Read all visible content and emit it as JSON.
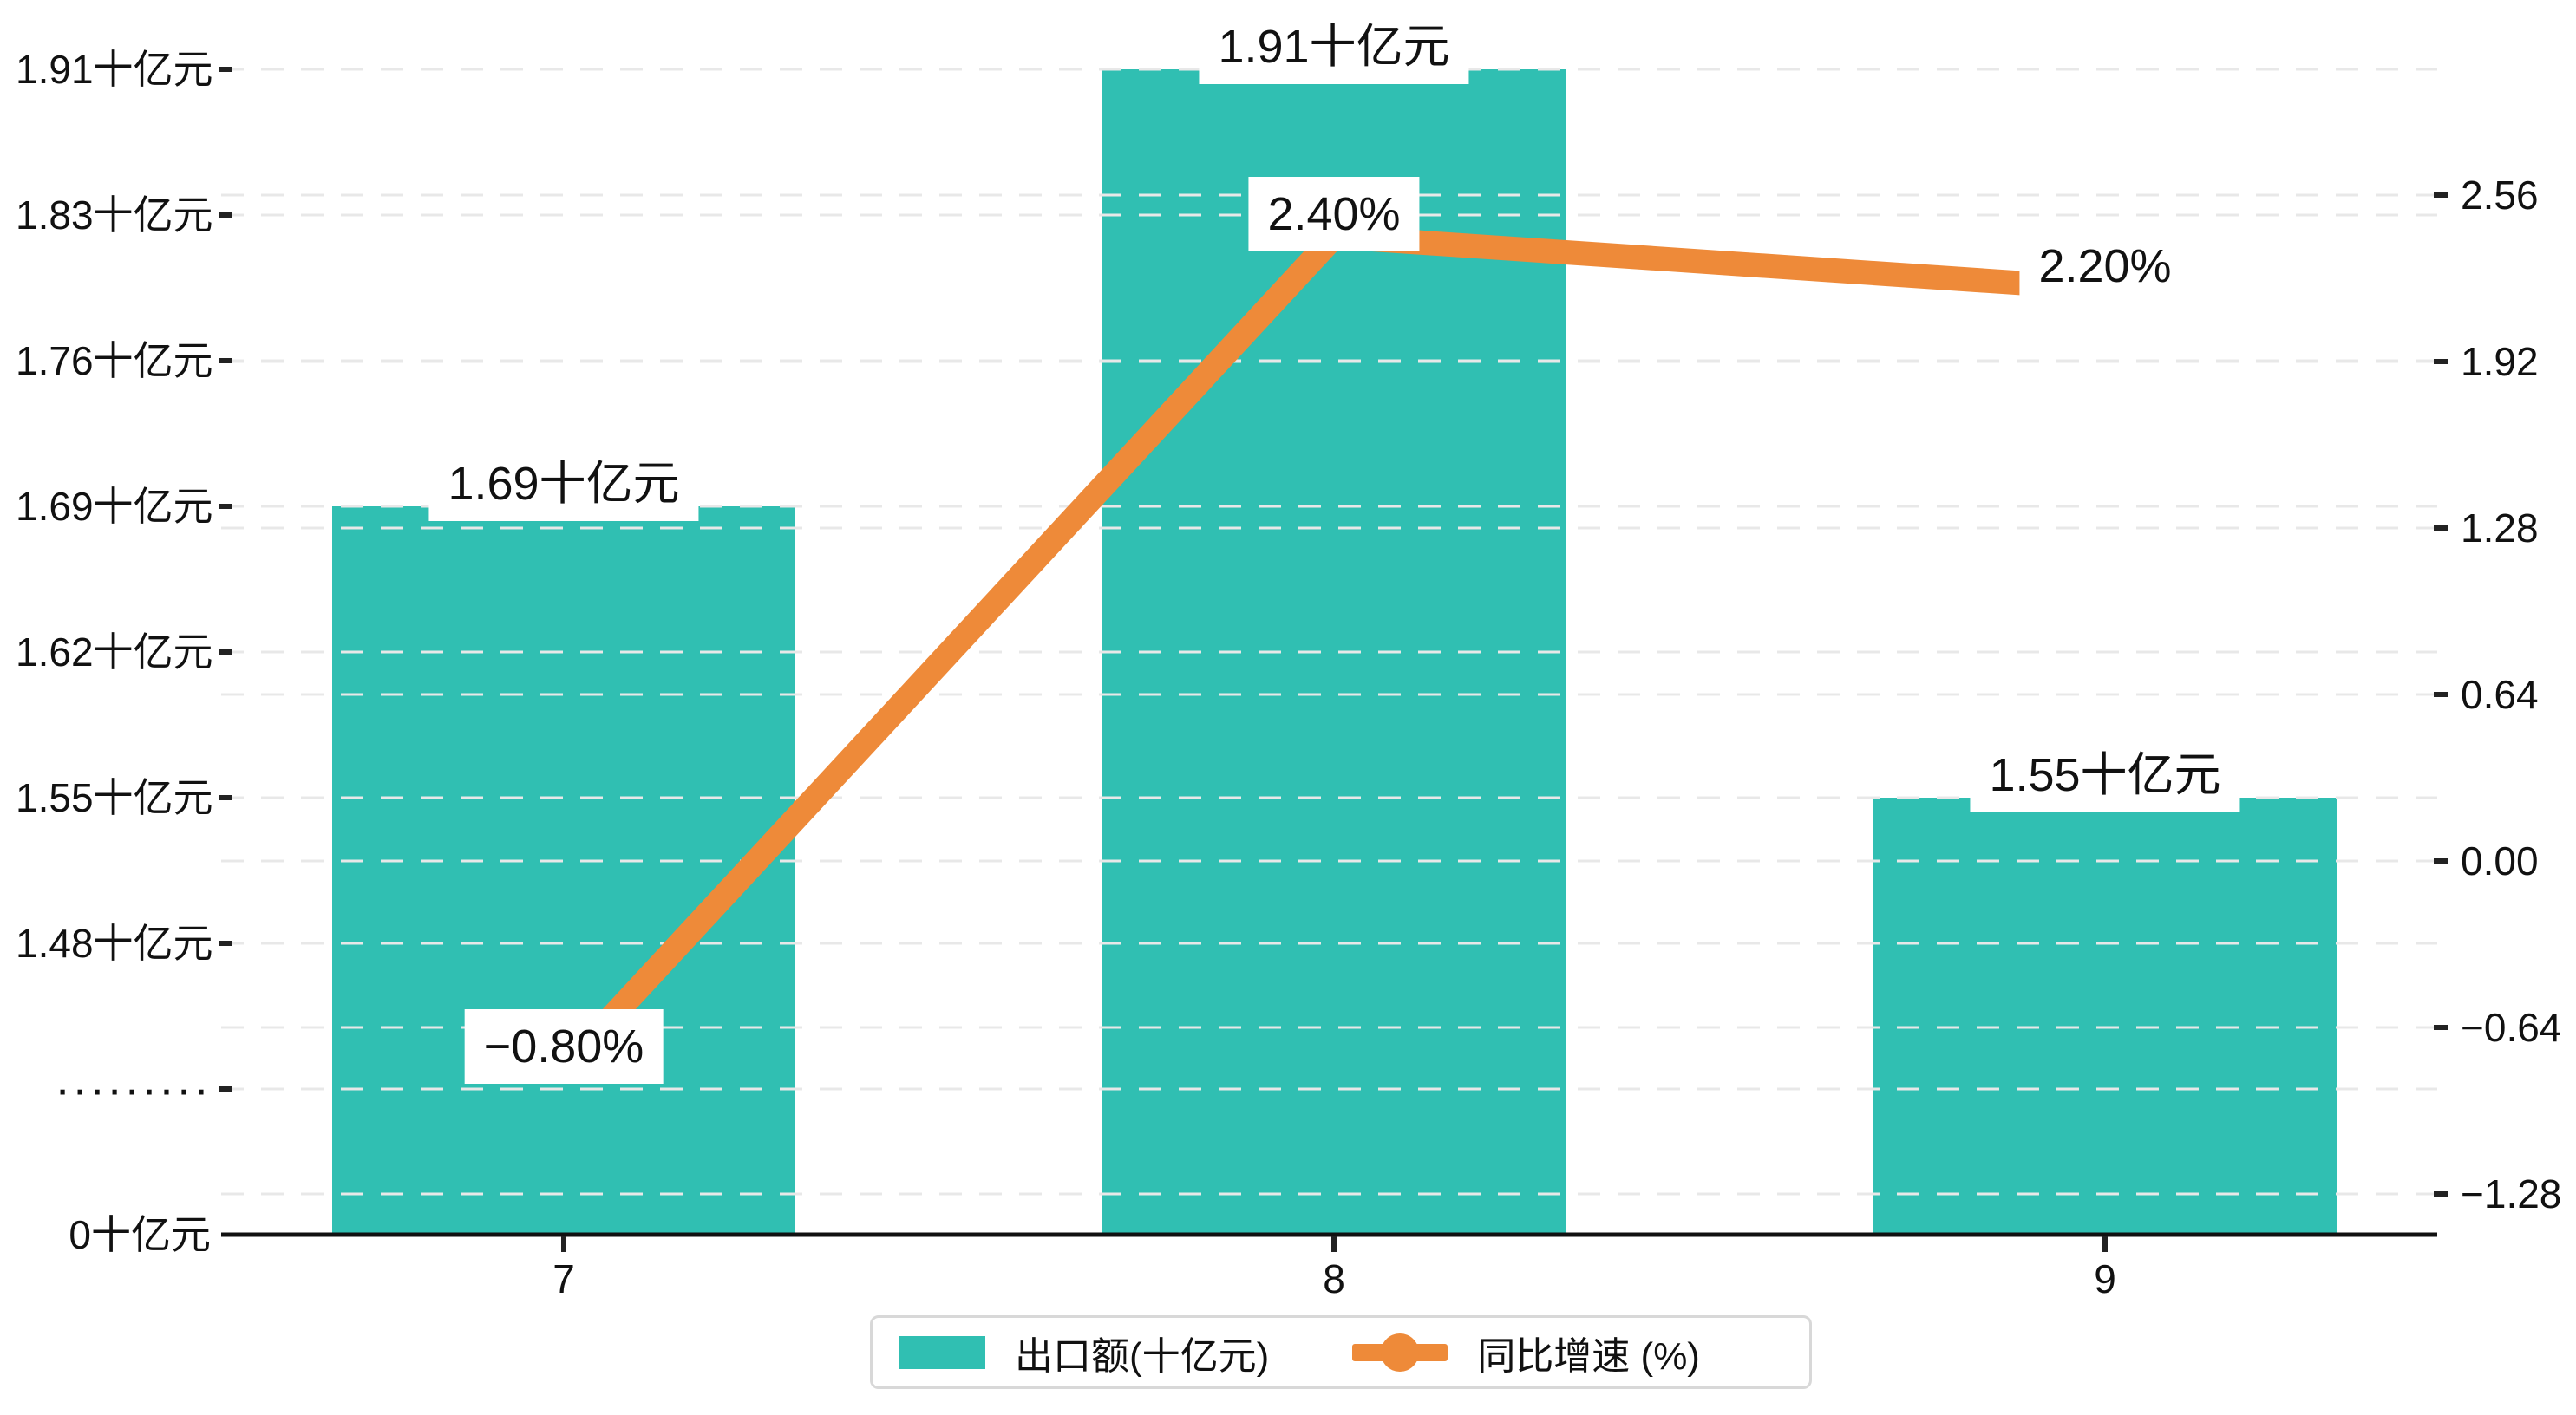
{
  "chart_data": {
    "type": "combo",
    "title": "",
    "categories": [
      "7",
      "8",
      "9"
    ],
    "series": [
      {
        "name": "出口额(十亿元)",
        "type": "bar",
        "axis": "left",
        "values": [
          1.69,
          1.91,
          1.55
        ],
        "point_labels": [
          "1.69十亿元",
          "1.91十亿元",
          "1.55十亿元"
        ]
      },
      {
        "name": "同比增速 (%)",
        "type": "line",
        "axis": "right",
        "values": [
          -0.8,
          2.4,
          2.2
        ],
        "point_labels": [
          "−0.80%",
          "2.40%",
          "2.20%"
        ]
      }
    ],
    "left_axis": {
      "unit": "十亿元",
      "tick_labels": [
        "1.91十亿元",
        "1.83十亿元",
        "1.76十亿元",
        "1.69十亿元",
        "1.62十亿元",
        "1.55十亿元",
        "1.48十亿元",
        "·········",
        "0十亿元"
      ],
      "tick_values": [
        1.91,
        1.83,
        1.76,
        1.69,
        1.62,
        1.55,
        1.48,
        null,
        0
      ],
      "axis_break": true
    },
    "right_axis": {
      "tick_labels": [
        "2.56",
        "1.92",
        "1.28",
        "0.64",
        "0.00",
        "−0.64",
        "−1.28"
      ],
      "tick_values": [
        2.56,
        1.92,
        1.28,
        0.64,
        0,
        -0.64,
        -1.28
      ]
    },
    "grid": true,
    "legend_position": "bottom"
  },
  "legend": {
    "items": [
      {
        "label": "出口额(十亿元)"
      },
      {
        "label": "同比增速 (%)"
      }
    ]
  },
  "colors": {
    "bar": "#30bfb2",
    "line": "#ee8a39",
    "grid": "#e8e8e8",
    "axis": "#111111",
    "text": "#111111",
    "label_bg": "#ffffff",
    "legend_border": "#d8d8d8"
  }
}
